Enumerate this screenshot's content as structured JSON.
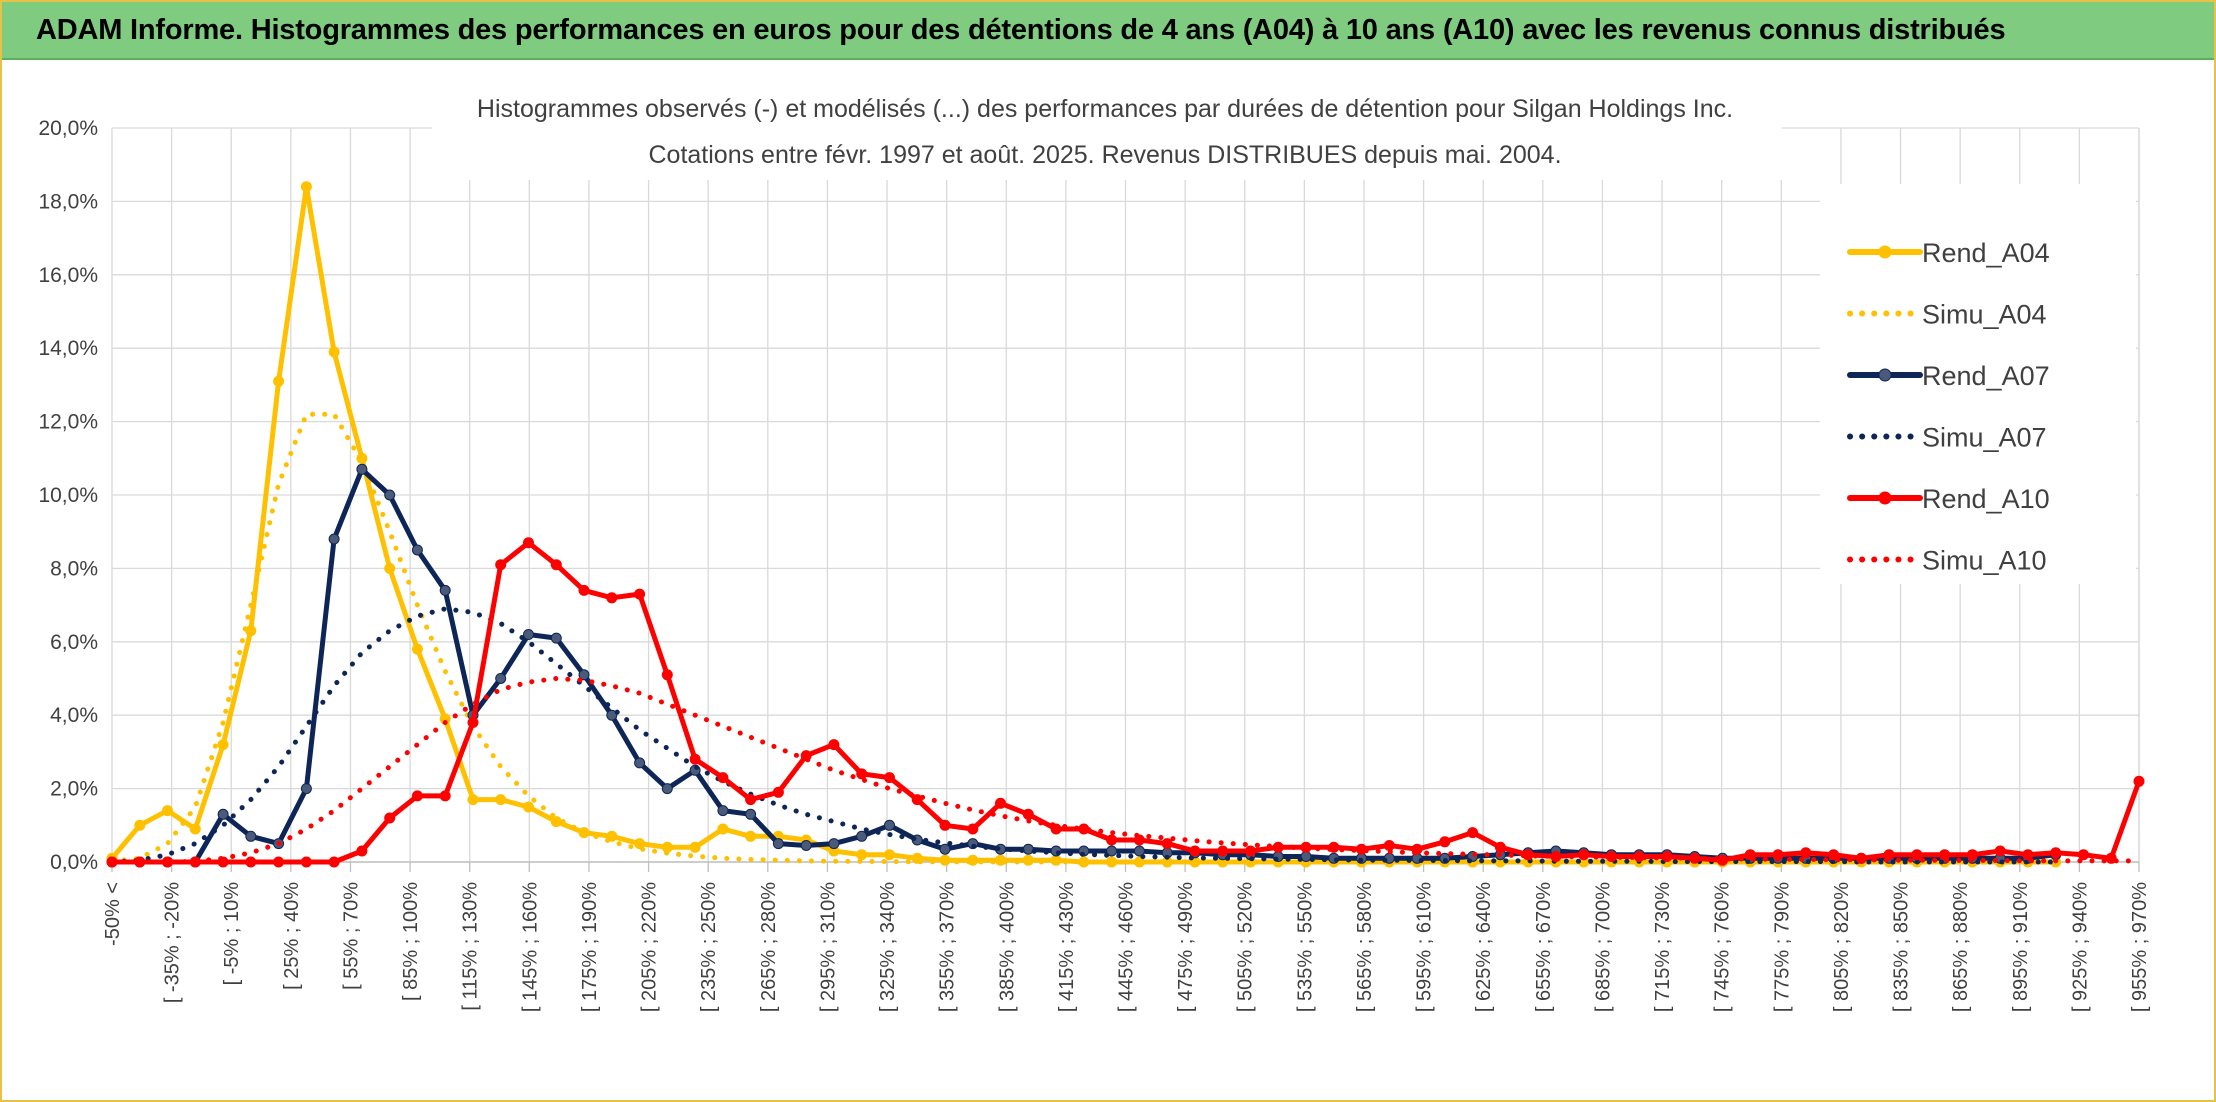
{
  "banner": {
    "title": "ADAM Informe. Histogrammes des performances en euros pour des détentions de 4 ans (A04) à 10 ans (A10) avec les revenus connus distribués"
  },
  "chart_data": {
    "type": "line",
    "title": "Histogrammes observés (-) et modélisés (...) des performances par durées de détention pour Silgan Holdings Inc.",
    "subtitle": "Cotations entre févr. 1997 et août. 2025. Revenus DISTRIBUES depuis mai. 2004.",
    "xlabel": "",
    "ylabel": "",
    "ylim": [
      0,
      20
    ],
    "y_ticks": [
      "0,0%",
      "2,0%",
      "4,0%",
      "6,0%",
      "8,0%",
      "10,0%",
      "12,0%",
      "14,0%",
      "16,0%",
      "18,0%",
      "20,0%"
    ],
    "grid": true,
    "legend_position": "right",
    "x_tick_labels": [
      "-50% <",
      "[ -35% ; -20%",
      "[ -5% ; 10%",
      "[ 25% ; 40%",
      "[ 55% ; 70%",
      "[ 85% ; 100%",
      "[ 115% ; 130%",
      "[ 145% ; 160%",
      "[ 175% ; 190%",
      "[ 205% ; 220%",
      "[ 235% ; 250%",
      "[ 265% ; 280%",
      "[ 295% ; 310%",
      "[ 325% ; 340%",
      "[ 355% ; 370%",
      "[ 385% ; 400%",
      "[ 415% ; 430%",
      "[ 445% ; 460%",
      "[ 475% ; 490%",
      "[ 505% ; 520%",
      "[ 535% ; 550%",
      "[ 565% ; 580%",
      "[ 595% ; 610%",
      "[ 625% ; 640%",
      "[ 655% ; 670%",
      "[ 685% ; 700%",
      "[ 715% ; 730%",
      "[ 745% ; 760%",
      "[ 775% ; 790%",
      "[ 805% ; 820%",
      "[ 835% ; 850%",
      "[ 865% ; 880%",
      "[ 895% ; 910%",
      "[ 925% ; 940%",
      "[ 955% ; 970%"
    ],
    "series": [
      {
        "name": "Rend_A04",
        "color": "#ffc000",
        "style": "solid",
        "markers": true,
        "values": [
          0.1,
          1.0,
          1.4,
          0.9,
          3.2,
          6.3,
          13.1,
          18.4,
          13.9,
          11.0,
          8.0,
          5.8,
          3.9,
          1.7,
          1.7,
          1.5,
          1.1,
          0.8,
          0.7,
          0.5,
          0.4,
          0.4,
          0.9,
          0.7,
          0.7,
          0.6,
          0.3,
          0.2,
          0.2,
          0.1,
          0.05,
          0.05,
          0.05,
          0.05,
          0.05,
          0,
          0,
          0,
          0,
          0,
          0,
          0,
          0,
          0,
          0,
          0,
          0,
          0,
          0,
          0,
          0,
          0,
          0,
          0,
          0,
          0,
          0,
          0,
          0,
          0,
          0,
          0,
          0,
          0,
          0,
          0,
          0,
          0,
          0,
          0,
          0
        ]
      },
      {
        "name": "Simu_A04",
        "color": "#ffc000",
        "style": "dotted",
        "markers": false,
        "values": [
          0.02,
          0.1,
          0.5,
          1.5,
          3.8,
          7.0,
          10.3,
          12.2,
          12.2,
          10.9,
          9.0,
          7.0,
          5.2,
          3.7,
          2.6,
          1.8,
          1.2,
          0.8,
          0.55,
          0.36,
          0.24,
          0.16,
          0.1,
          0.07,
          0.05,
          0.03,
          0.02,
          0.015,
          0.01,
          0.005,
          0.003,
          0.002,
          0.001,
          0,
          0,
          0,
          0,
          0,
          0,
          0,
          0,
          0,
          0,
          0,
          0,
          0,
          0,
          0,
          0,
          0,
          0,
          0,
          0,
          0,
          0,
          0,
          0,
          0,
          0,
          0,
          0,
          0,
          0,
          0,
          0,
          0,
          0,
          0,
          0,
          0,
          0
        ]
      },
      {
        "name": "Rend_A07",
        "color": "#0d2657",
        "style": "solid",
        "markers": true,
        "values": [
          0,
          0,
          0,
          0,
          1.3,
          0.7,
          0.5,
          2.0,
          8.8,
          10.7,
          10.0,
          8.5,
          7.4,
          4.0,
          5.0,
          6.2,
          6.1,
          5.1,
          4.0,
          2.7,
          2.0,
          2.5,
          1.4,
          1.3,
          0.5,
          0.45,
          0.5,
          0.7,
          1.0,
          0.6,
          0.35,
          0.5,
          0.35,
          0.35,
          0.3,
          0.3,
          0.3,
          0.3,
          0.25,
          0.25,
          0.2,
          0.2,
          0.15,
          0.15,
          0.1,
          0.1,
          0.1,
          0.1,
          0.1,
          0.15,
          0.2,
          0.25,
          0.3,
          0.25,
          0.2,
          0.2,
          0.2,
          0.15,
          0.1,
          0.1,
          0.1,
          0.1,
          0.1,
          0.1,
          0.1,
          0.1,
          0.1,
          0.1,
          0.1,
          0.1,
          0.2
        ]
      },
      {
        "name": "Simu_A07",
        "color": "#0d2657",
        "style": "dotted",
        "markers": false,
        "values": [
          0,
          0.05,
          0.2,
          0.5,
          1.0,
          1.7,
          2.6,
          3.7,
          4.8,
          5.7,
          6.3,
          6.7,
          6.9,
          6.8,
          6.5,
          6.0,
          5.4,
          4.8,
          4.2,
          3.6,
          3.1,
          2.6,
          2.2,
          1.85,
          1.55,
          1.3,
          1.1,
          0.9,
          0.75,
          0.62,
          0.52,
          0.43,
          0.36,
          0.3,
          0.25,
          0.21,
          0.18,
          0.15,
          0.13,
          0.11,
          0.1,
          0.09,
          0.08,
          0.07,
          0.06,
          0.05,
          0.05,
          0.04,
          0.04,
          0.03,
          0.03,
          0.03,
          0.02,
          0.02,
          0.02,
          0.02,
          0.01,
          0.01,
          0.01,
          0.01,
          0.01,
          0.01,
          0.01,
          0,
          0,
          0,
          0,
          0,
          0,
          0,
          0
        ]
      },
      {
        "name": "Rend_A10",
        "color": "#ff0000",
        "style": "solid",
        "markers": true,
        "values": [
          0,
          0,
          0,
          0,
          0,
          0,
          0,
          0,
          0,
          0.3,
          1.2,
          1.8,
          1.8,
          3.8,
          8.1,
          8.7,
          8.1,
          7.4,
          7.2,
          7.3,
          5.1,
          2.8,
          2.3,
          1.7,
          1.9,
          2.9,
          3.2,
          2.4,
          2.3,
          1.7,
          1.0,
          0.9,
          1.6,
          1.3,
          0.9,
          0.9,
          0.6,
          0.6,
          0.5,
          0.3,
          0.3,
          0.3,
          0.4,
          0.4,
          0.4,
          0.35,
          0.45,
          0.35,
          0.55,
          0.8,
          0.4,
          0.2,
          0.15,
          0.2,
          0.15,
          0.15,
          0.15,
          0.1,
          0.05,
          0.2,
          0.2,
          0.25,
          0.2,
          0.1,
          0.2,
          0.2,
          0.2,
          0.2,
          0.3,
          0.2,
          0.25,
          0.2,
          0.1,
          2.2
        ]
      },
      {
        "name": "Simu_A10",
        "color": "#ff0000",
        "style": "dotted",
        "markers": false,
        "values": [
          0,
          0,
          0,
          0.02,
          0.1,
          0.25,
          0.5,
          0.9,
          1.4,
          2.0,
          2.6,
          3.2,
          3.8,
          4.3,
          4.7,
          4.9,
          5.0,
          4.95,
          4.8,
          4.6,
          4.3,
          4.0,
          3.7,
          3.4,
          3.1,
          2.8,
          2.5,
          2.25,
          2.0,
          1.8,
          1.6,
          1.42,
          1.26,
          1.12,
          1.0,
          0.9,
          0.8,
          0.72,
          0.65,
          0.58,
          0.52,
          0.47,
          0.42,
          0.38,
          0.34,
          0.31,
          0.28,
          0.25,
          0.23,
          0.21,
          0.19,
          0.17,
          0.15,
          0.14,
          0.13,
          0.12,
          0.11,
          0.1,
          0.09,
          0.08,
          0.07,
          0.07,
          0.06,
          0.06,
          0.05,
          0.05,
          0.04,
          0.04,
          0.04,
          0.03,
          0.03,
          0.03,
          0.03,
          0.03
        ]
      }
    ]
  }
}
